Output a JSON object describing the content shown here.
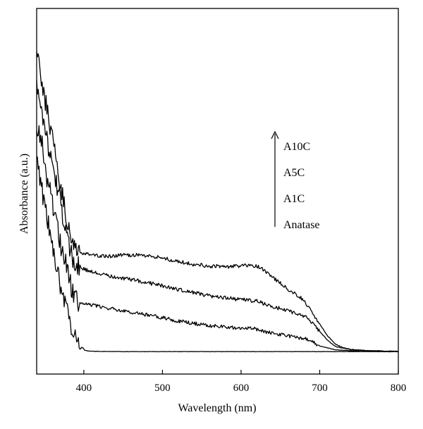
{
  "chart_data": {
    "type": "line",
    "xlabel": "Wavelength (nm)",
    "ylabel": "Absorbance (a.u.)",
    "xlim": [
      340,
      800
    ],
    "ylim": [
      0,
      1
    ],
    "x_ticks": [
      400,
      500,
      600,
      700,
      800
    ],
    "y_ticks": [],
    "grid": false,
    "legend_order_note": "arrow",
    "legend": [
      "A10C",
      "A5C",
      "A1C",
      "Anatase"
    ],
    "series": [
      {
        "name": "Anatase",
        "x": [
          340,
          350,
          360,
          370,
          375,
          380,
          385,
          390,
          395,
          400,
          405,
          410,
          450,
          500,
          550,
          600,
          650,
          700,
          750,
          800
        ],
        "y": [
          0.62,
          0.47,
          0.34,
          0.22,
          0.16,
          0.11,
          0.07,
          0.035,
          0.015,
          0.007,
          0.004,
          0.003,
          0.002,
          0.002,
          0.002,
          0.002,
          0.002,
          0.002,
          0.002,
          0.002
        ]
      },
      {
        "name": "A1C",
        "x": [
          340,
          345,
          350,
          360,
          370,
          380,
          385,
          390,
          400,
          410,
          420,
          430,
          440,
          450,
          460,
          480,
          500,
          520,
          540,
          560,
          580,
          600,
          610,
          620,
          630,
          640,
          650,
          660,
          670,
          680,
          690,
          700,
          720,
          740,
          760,
          780,
          800
        ],
        "y": [
          0.72,
          0.7,
          0.6,
          0.47,
          0.35,
          0.26,
          0.2,
          0.17,
          0.155,
          0.15,
          0.145,
          0.14,
          0.137,
          0.133,
          0.128,
          0.12,
          0.11,
          0.1,
          0.092,
          0.085,
          0.08,
          0.077,
          0.076,
          0.073,
          0.066,
          0.06,
          0.056,
          0.052,
          0.048,
          0.044,
          0.035,
          0.02,
          0.008,
          0.004,
          0.003,
          0.002,
          0.002
        ]
      },
      {
        "name": "A5C",
        "x": [
          340,
          345,
          350,
          360,
          370,
          380,
          385,
          390,
          400,
          410,
          420,
          430,
          440,
          450,
          460,
          480,
          500,
          520,
          540,
          560,
          580,
          600,
          610,
          620,
          630,
          640,
          650,
          660,
          670,
          680,
          690,
          700,
          710,
          720,
          740,
          760,
          780,
          800
        ],
        "y": [
          0.85,
          0.8,
          0.72,
          0.6,
          0.48,
          0.36,
          0.3,
          0.28,
          0.265,
          0.256,
          0.25,
          0.245,
          0.24,
          0.236,
          0.232,
          0.222,
          0.212,
          0.2,
          0.19,
          0.18,
          0.173,
          0.168,
          0.166,
          0.163,
          0.154,
          0.146,
          0.139,
          0.131,
          0.124,
          0.116,
          0.096,
          0.066,
          0.038,
          0.018,
          0.008,
          0.004,
          0.003,
          0.002
        ]
      },
      {
        "name": "A10C",
        "x": [
          340,
          342,
          345,
          350,
          360,
          370,
          380,
          385,
          390,
          400,
          410,
          420,
          430,
          440,
          450,
          460,
          480,
          500,
          520,
          540,
          560,
          580,
          600,
          610,
          620,
          630,
          640,
          650,
          660,
          670,
          680,
          690,
          700,
          710,
          720,
          730,
          740,
          760,
          780,
          800
        ],
        "y": [
          0.95,
          0.97,
          0.9,
          0.82,
          0.68,
          0.53,
          0.4,
          0.35,
          0.33,
          0.315,
          0.31,
          0.307,
          0.305,
          0.307,
          0.31,
          0.31,
          0.308,
          0.3,
          0.29,
          0.28,
          0.275,
          0.273,
          0.275,
          0.278,
          0.276,
          0.26,
          0.24,
          0.22,
          0.2,
          0.185,
          0.165,
          0.13,
          0.09,
          0.052,
          0.026,
          0.014,
          0.009,
          0.005,
          0.004,
          0.003
        ]
      }
    ]
  }
}
